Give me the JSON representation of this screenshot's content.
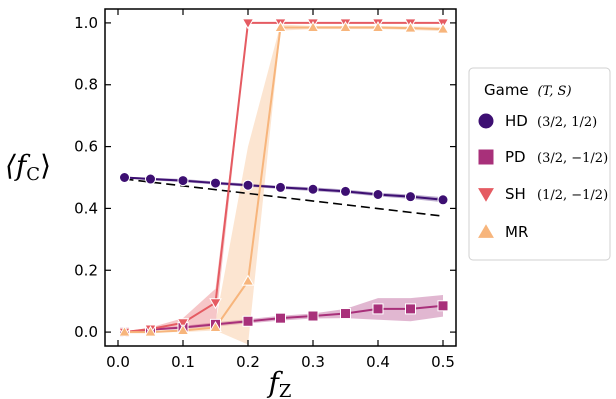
{
  "chart_data": {
    "type": "line",
    "x": [
      0.01,
      0.05,
      0.1,
      0.15,
      0.2,
      0.25,
      0.3,
      0.35,
      0.4,
      0.45,
      0.5
    ],
    "xlim": [
      -0.02,
      0.52
    ],
    "ylim": [
      -0.045,
      1.045
    ],
    "xticks": [
      0.0,
      0.1,
      0.2,
      0.3,
      0.4,
      0.5
    ],
    "yticks": [
      0.0,
      0.2,
      0.4,
      0.6,
      0.8,
      1.0
    ],
    "xtick_labels": [
      "0.0",
      "0.1",
      "0.2",
      "0.3",
      "0.4",
      "0.5"
    ],
    "ytick_labels": [
      "0.0",
      "0.2",
      "0.4",
      "0.6",
      "0.8",
      "1.0"
    ],
    "xlabel": "f",
    "xlabel_sub": "Z",
    "ylabel": "⟨f",
    "ylabel_sub": "C",
    "ylabel_close": "⟩",
    "legend": {
      "title": "Game",
      "title_math": "(T, S)",
      "placement": "right, outside plot"
    },
    "series": [
      {
        "name": "HD",
        "params": "(3/2,  1/2)",
        "color": "#3d0f72",
        "marker": "circle",
        "values": [
          0.5,
          0.495,
          0.49,
          0.482,
          0.475,
          0.468,
          0.462,
          0.455,
          0.445,
          0.438,
          0.428
        ],
        "band_low": [
          0.497,
          0.491,
          0.485,
          0.477,
          0.47,
          0.463,
          0.456,
          0.449,
          0.439,
          0.431,
          0.42
        ],
        "band_high": [
          0.503,
          0.499,
          0.495,
          0.487,
          0.48,
          0.473,
          0.468,
          0.461,
          0.451,
          0.445,
          0.436
        ]
      },
      {
        "name": "PD",
        "params": "(3/2, −1/2)",
        "color": "#a8307a",
        "marker": "square",
        "values": [
          0.0,
          0.008,
          0.015,
          0.025,
          0.035,
          0.045,
          0.052,
          0.06,
          0.075,
          0.075,
          0.085
        ],
        "band_low": [
          0.0,
          0.005,
          0.01,
          0.018,
          0.028,
          0.037,
          0.044,
          0.045,
          0.04,
          0.035,
          0.05
        ],
        "band_high": [
          0.002,
          0.011,
          0.02,
          0.032,
          0.042,
          0.053,
          0.06,
          0.075,
          0.11,
          0.11,
          0.12
        ]
      },
      {
        "name": "SH",
        "params": "(1/2, −1/2)",
        "color": "#e55b62",
        "marker": "triangle-down",
        "values": [
          0.0,
          0.01,
          0.03,
          0.095,
          1.0,
          1.0,
          1.0,
          1.0,
          1.0,
          1.0,
          1.0
        ],
        "band_low": [
          0.0,
          0.005,
          0.02,
          0.02,
          1.0,
          1.0,
          1.0,
          1.0,
          1.0,
          1.0,
          1.0
        ],
        "band_high": [
          0.002,
          0.015,
          0.045,
          0.14,
          1.0,
          1.0,
          1.0,
          1.0,
          1.0,
          1.0,
          1.0
        ]
      },
      {
        "name": "MR",
        "params": "",
        "color": "#f7b57c",
        "marker": "triangle-up",
        "values": [
          0.0,
          0.0,
          0.005,
          0.015,
          0.165,
          0.985,
          0.985,
          0.985,
          0.985,
          0.983,
          0.98
        ],
        "band_low": [
          0.0,
          0.0,
          0.0,
          0.005,
          -0.04,
          0.975,
          0.98,
          0.98,
          0.98,
          0.977,
          0.973
        ],
        "band_high": [
          0.002,
          0.003,
          0.01,
          0.03,
          0.6,
          0.995,
          0.99,
          0.99,
          0.99,
          0.989,
          0.987
        ]
      }
    ],
    "reference_line": {
      "style": "dashed",
      "color": "#000000",
      "x": [
        0.01,
        0.5
      ],
      "y": [
        0.495,
        0.375
      ]
    }
  }
}
